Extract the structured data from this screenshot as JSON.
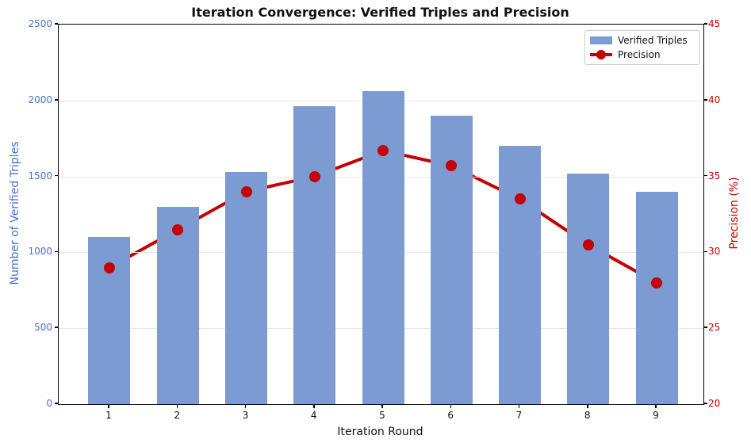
{
  "title": "Iteration Convergence: Verified Triples and Precision",
  "chart_data": {
    "type": "bar+line",
    "categories": [
      "1",
      "2",
      "3",
      "4",
      "5",
      "6",
      "7",
      "8",
      "9"
    ],
    "series": [
      {
        "name": "Verified Triples",
        "type": "bar",
        "axis": "left",
        "color": "#7B9BD2",
        "values": [
          1100,
          1300,
          1530,
          1960,
          2060,
          1900,
          1700,
          1520,
          1400
        ]
      },
      {
        "name": "Precision",
        "type": "line",
        "axis": "right",
        "color": "#C40000",
        "values": [
          29.0,
          31.5,
          34.0,
          35.0,
          36.7,
          35.7,
          33.5,
          30.5,
          28.0
        ]
      }
    ],
    "xlabel": "Iteration Round",
    "ylabel_left": "Number of Verified Triples",
    "ylabel_right": "Precision (%)",
    "ylim_left": [
      0,
      2500
    ],
    "ylim_right": [
      20,
      45
    ],
    "yticks_left": [
      "0",
      "500",
      "1000",
      "1500",
      "2000",
      "2500"
    ],
    "yticks_right": [
      "20",
      "25",
      "30",
      "35",
      "40",
      "45"
    ],
    "left_axis_color": "#4573C8",
    "right_axis_color": "#C40000",
    "grid": true,
    "legend_position": "upper right"
  }
}
